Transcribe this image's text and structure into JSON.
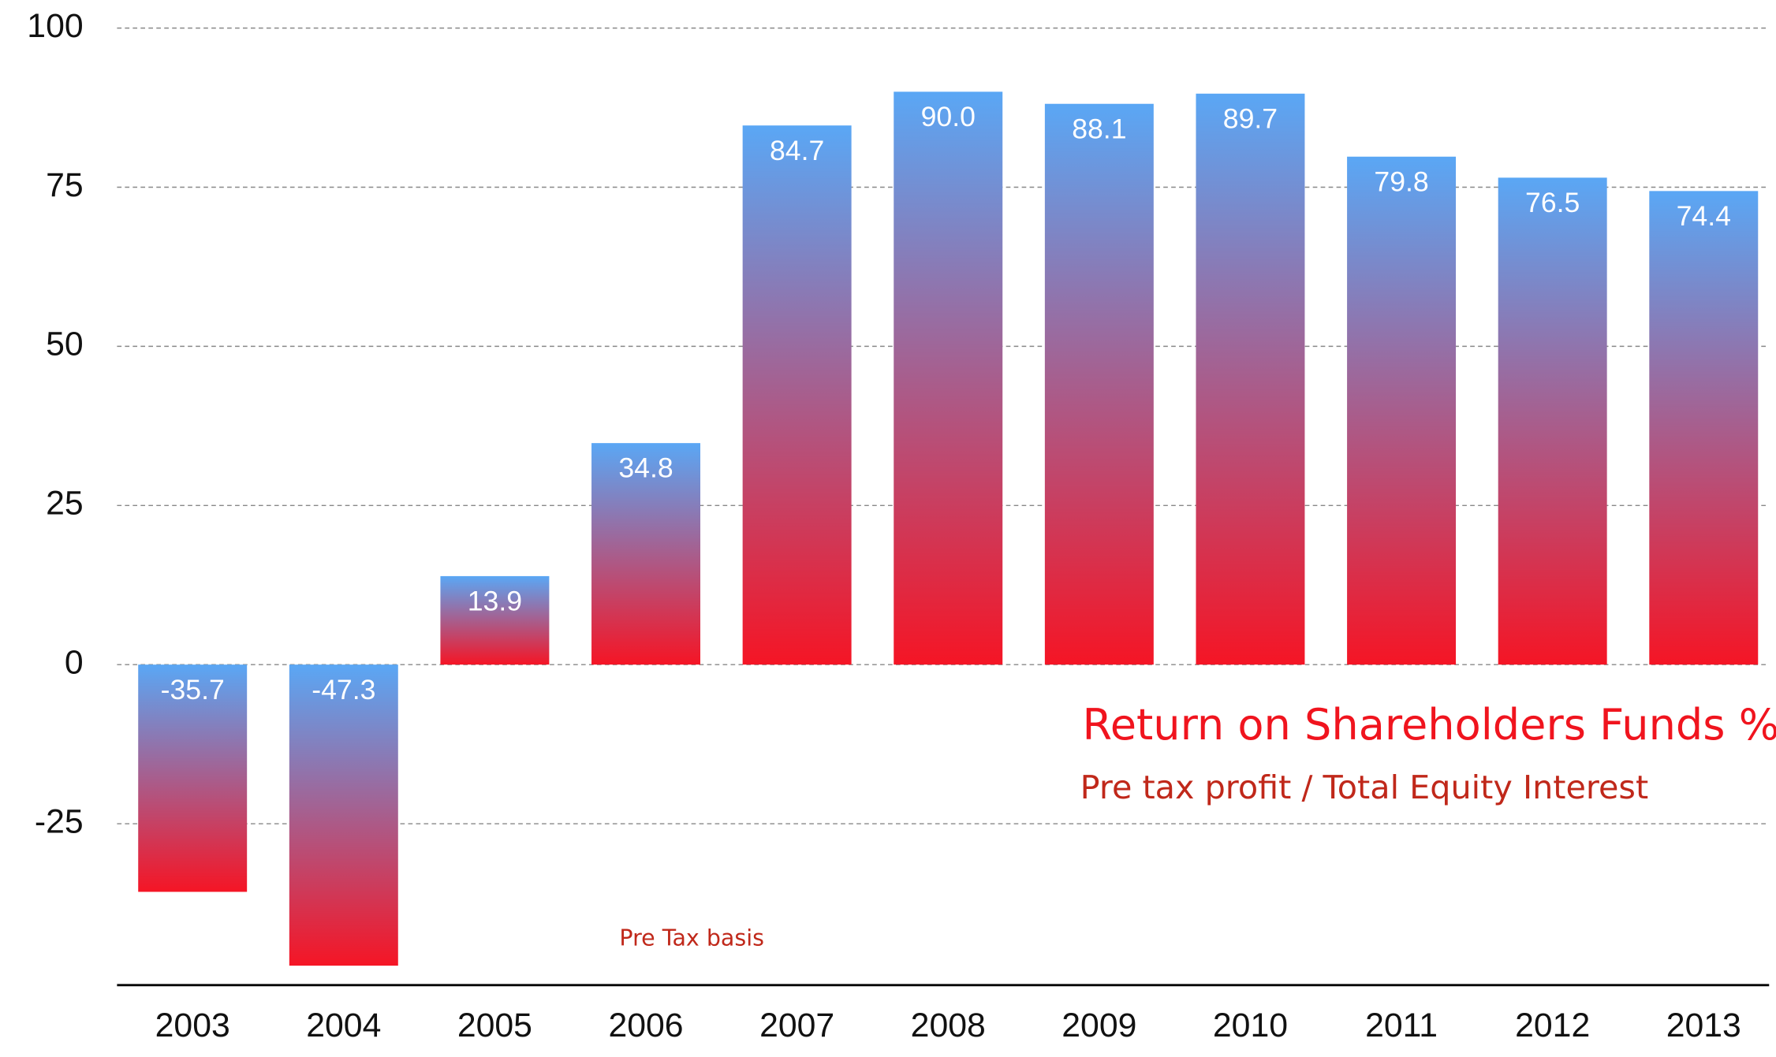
{
  "chart_data": {
    "type": "bar",
    "title": "Return on Shareholders Funds %",
    "subtitle": "Pre tax profit / Total Equity Interest",
    "annotation": "Pre Tax basis",
    "categories": [
      "2003",
      "2004",
      "2005",
      "2006",
      "2007",
      "2008",
      "2009",
      "2010",
      "2011",
      "2012",
      "2013"
    ],
    "values": [
      -35.7,
      -47.3,
      13.9,
      34.8,
      84.7,
      90.0,
      88.1,
      89.7,
      79.8,
      76.5,
      74.4
    ],
    "value_labels": [
      "-35.7",
      "-47.3",
      "13.9",
      "34.8",
      "84.7",
      "90.0",
      "88.1",
      "89.7",
      "79.8",
      "76.5",
      "74.4"
    ],
    "color": [
      "#5aa7f5",
      "#f51525"
    ],
    "ylim": [
      -50,
      100
    ],
    "yticks": [
      -25,
      0,
      25,
      50,
      75,
      100
    ],
    "grid": true
  }
}
